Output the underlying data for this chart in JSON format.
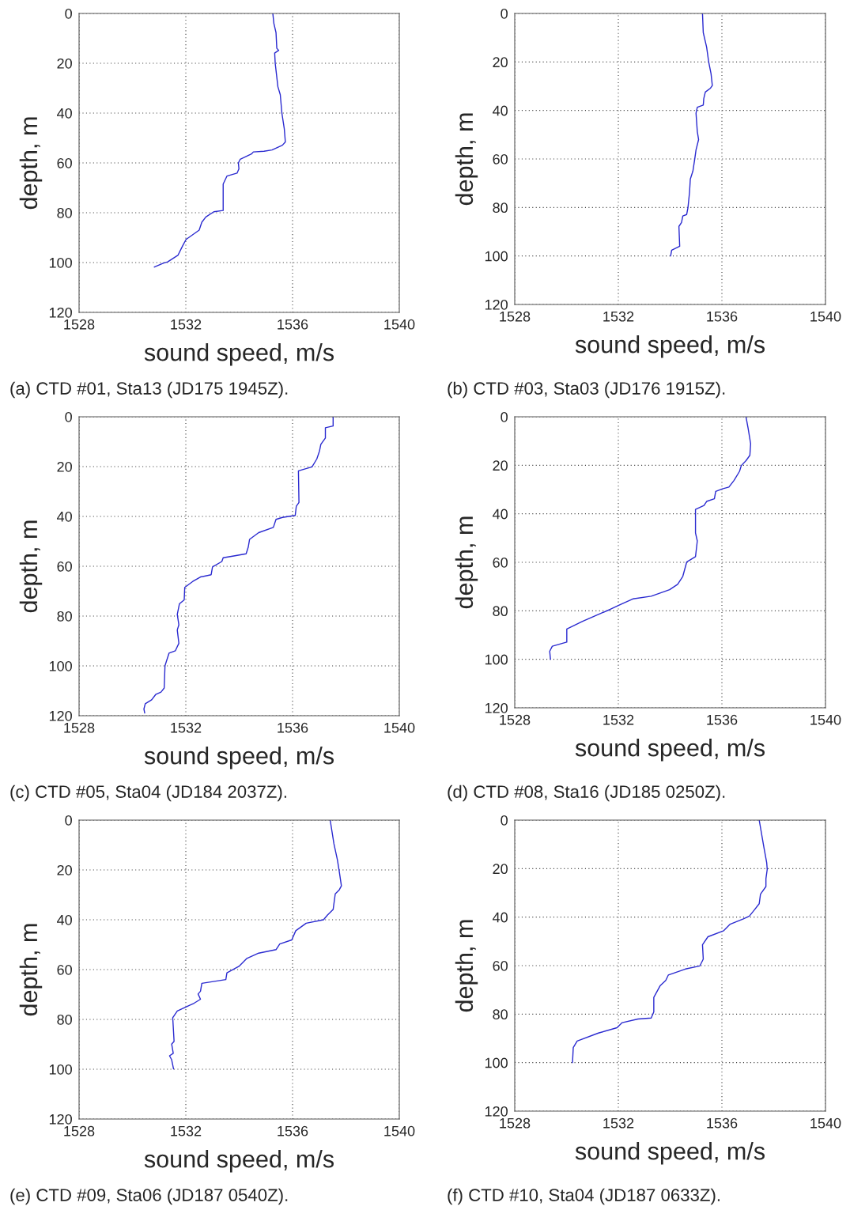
{
  "chart_data": [
    {
      "type": "line",
      "xlabel": "sound speed, m/s",
      "ylabel": "depth, m",
      "xlim": [
        1528,
        1540
      ],
      "ylim": [
        120,
        0
      ],
      "xticks": [
        1528,
        1532,
        1536,
        1540
      ],
      "yticks": [
        0,
        20,
        40,
        60,
        80,
        100,
        120
      ],
      "grid": true,
      "annotations": [
        "(a) CTD #01, Sta13 (JD175 1945Z)."
      ],
      "series": [
        {
          "color": "#2a2ad0",
          "x": [
            1535.26,
            1535.3,
            1535.38,
            1535.41,
            1535.48,
            1535.33,
            1535.35,
            1535.45,
            1535.54,
            1535.6,
            1535.69,
            1535.73,
            1535.62,
            1535.23,
            1534.93,
            1534.53,
            1534.46,
            1534.04,
            1533.97,
            1533.99,
            1533.92,
            1533.54,
            1533.4,
            1533.4,
            1533.05,
            1532.75,
            1532.6,
            1532.5,
            1532.01,
            1531.88,
            1531.71,
            1531.32,
            1531.17,
            1530.82
          ],
          "values": [
            0,
            4,
            7.7,
            14,
            14.8,
            15.9,
            20,
            29.4,
            32.6,
            40,
            46.3,
            51.6,
            52.9,
            54.8,
            55.3,
            55.6,
            56.4,
            58.5,
            60,
            62.4,
            64.1,
            65.3,
            68.5,
            79.1,
            79.6,
            81.7,
            83.8,
            87,
            90.7,
            93.3,
            97,
            99.7,
            100.2,
            101.8
          ]
        }
      ]
    },
    {
      "type": "line",
      "xlabel": "sound speed, m/s",
      "ylabel": "depth, m",
      "xlim": [
        1528,
        1540
      ],
      "ylim": [
        120,
        0
      ],
      "xticks": [
        1528,
        1532,
        1536,
        1540
      ],
      "yticks": [
        0,
        20,
        40,
        60,
        80,
        100,
        120
      ],
      "grid": true,
      "annotations": [
        "(b) CTD #03, Sta03 (JD176 1915Z)."
      ],
      "series": [
        {
          "color": "#2a2ad0",
          "x": [
            1535.25,
            1535.28,
            1535.41,
            1535.49,
            1535.58,
            1535.63,
            1535.56,
            1535.36,
            1535.3,
            1535.28,
            1535.05,
            1535.0,
            1535.05,
            1535.1,
            1535.0,
            1534.95,
            1534.88,
            1534.78,
            1534.75,
            1534.69,
            1534.64,
            1534.49,
            1534.44,
            1534.34,
            1534.37,
            1534.06,
            1534.02
          ],
          "values": [
            0,
            7.9,
            13.9,
            20,
            24.8,
            29.7,
            30.8,
            32.4,
            35.1,
            37.8,
            38.7,
            41.1,
            48.7,
            52,
            56.3,
            60.1,
            65,
            68.3,
            73.7,
            80,
            82.9,
            83.5,
            86.2,
            87.8,
            96,
            97.6,
            100
          ]
        }
      ]
    },
    {
      "type": "line",
      "xlabel": "sound speed, m/s",
      "ylabel": "depth, m",
      "xlim": [
        1528,
        1540
      ],
      "ylim": [
        120,
        0
      ],
      "xticks": [
        1528,
        1532,
        1536,
        1540
      ],
      "yticks": [
        0,
        20,
        40,
        60,
        80,
        100,
        120
      ],
      "grid": true,
      "annotations": [
        "(c) CTD #05, Sta04 (JD184 2037Z)."
      ],
      "series": [
        {
          "color": "#2a2ad0",
          "x": [
            1537.52,
            1537.52,
            1537.23,
            1537.23,
            1537.06,
            1537.01,
            1536.91,
            1536.73,
            1536.22,
            1536.24,
            1536.14,
            1536.1,
            1535.62,
            1535.38,
            1535.28,
            1534.73,
            1534.39,
            1534.34,
            1534.26,
            1533.84,
            1533.4,
            1533.35,
            1533.0,
            1532.95,
            1532.55,
            1532.26,
            1531.96,
            1531.94,
            1531.76,
            1531.68,
            1531.74,
            1531.68,
            1531.74,
            1531.61,
            1531.37,
            1531.22,
            1531.19,
            1531.07,
            1530.87,
            1530.72,
            1530.48,
            1530.43,
            1530.46
          ],
          "values": [
            0,
            3.7,
            4.4,
            8.5,
            11.1,
            13.7,
            16.9,
            20.1,
            21.7,
            34.4,
            35.9,
            39.6,
            40.4,
            41.2,
            44.4,
            46.5,
            49.2,
            52.3,
            55,
            55.8,
            56.6,
            58.1,
            60.3,
            63.4,
            64.3,
            66.1,
            68.5,
            73.5,
            75.1,
            79.3,
            83.5,
            85.6,
            90.9,
            93.9,
            94.9,
            99.9,
            108.9,
            110.5,
            111.5,
            113.6,
            115.2,
            117.3,
            118.9
          ]
        }
      ]
    },
    {
      "type": "line",
      "xlabel": "sound speed, m/s",
      "ylabel": "depth, m",
      "xlim": [
        1528,
        1540
      ],
      "ylim": [
        120,
        0
      ],
      "xticks": [
        1528,
        1532,
        1536,
        1540
      ],
      "yticks": [
        0,
        20,
        40,
        60,
        80,
        100,
        120
      ],
      "grid": true,
      "annotations": [
        "(d) CTD #08, Sta16 (JD185 0250Z)."
      ],
      "series": [
        {
          "color": "#2a2ad0",
          "x": [
            1536.93,
            1537.01,
            1537.11,
            1537.08,
            1536.93,
            1536.75,
            1536.68,
            1536.47,
            1536.27,
            1536.02,
            1535.76,
            1535.71,
            1535.41,
            1535.31,
            1534.98,
            1534.98,
            1535.05,
            1534.98,
            1534.64,
            1534.49,
            1534.29,
            1533.98,
            1533.27,
            1532.56,
            1532.0,
            1531.69,
            1530.62,
            1530.01,
            1530.01,
            1529.45,
            1529.35,
            1529.38
          ],
          "values": [
            0,
            4.6,
            11.1,
            15.9,
            18.1,
            20.1,
            22.5,
            26.2,
            29,
            29.7,
            30.8,
            33.8,
            34.9,
            36.6,
            38.2,
            47.9,
            51.2,
            57.7,
            59.9,
            65.8,
            69.1,
            71.3,
            74,
            75.1,
            77.8,
            79.4,
            84.3,
            87.5,
            92.9,
            94.6,
            96.7,
            100
          ]
        }
      ]
    },
    {
      "type": "line",
      "xlabel": "sound speed, m/s",
      "ylabel": "depth, m",
      "xlim": [
        1528,
        1540
      ],
      "ylim": [
        120,
        0
      ],
      "xticks": [
        1528,
        1532,
        1536,
        1540
      ],
      "yticks": [
        0,
        20,
        40,
        60,
        80,
        100,
        120
      ],
      "grid": true,
      "annotations": [
        "(e) CTD #09, Sta06 (JD187 0540Z)."
      ],
      "series": [
        {
          "color": "#2a2ad0",
          "x": [
            1537.41,
            1537.55,
            1537.68,
            1537.75,
            1537.83,
            1537.75,
            1537.6,
            1537.52,
            1537.31,
            1537.16,
            1536.51,
            1536.12,
            1535.97,
            1535.52,
            1535.38,
            1534.73,
            1534.29,
            1533.99,
            1533.54,
            1533.5,
            1532.6,
            1532.55,
            1532.46,
            1532.55,
            1532.31,
            1531.68,
            1531.51,
            1531.56,
            1531.47,
            1531.53,
            1531.39,
            1531.47,
            1531.54
          ],
          "values": [
            0,
            9.5,
            15.9,
            20.6,
            26.4,
            28,
            29.6,
            35.9,
            38.1,
            40,
            41.4,
            44.4,
            48.1,
            49.7,
            52,
            53.4,
            55.5,
            58.7,
            61.3,
            64,
            65.5,
            68.7,
            69.8,
            71.9,
            73.5,
            76.6,
            79.3,
            88.8,
            89.9,
            93.6,
            94.6,
            96.2,
            99.9
          ]
        }
      ]
    },
    {
      "type": "line",
      "xlabel": "sound speed, m/s",
      "ylabel": "depth, m",
      "xlim": [
        1528,
        1540
      ],
      "ylim": [
        120,
        0
      ],
      "xticks": [
        1528,
        1532,
        1536,
        1540
      ],
      "yticks": [
        0,
        20,
        40,
        60,
        80,
        100,
        120
      ],
      "grid": true,
      "annotations": [
        "(f) CTD #10, Sta04 (JD187 0633Z)."
      ],
      "series": [
        {
          "color": "#2a2ad0",
          "x": [
            1537.44,
            1537.62,
            1537.73,
            1537.75,
            1537.7,
            1537.7,
            1537.49,
            1537.44,
            1537.24,
            1537.06,
            1536.83,
            1536.32,
            1536.07,
            1535.46,
            1535.25,
            1535.28,
            1535.15,
            1534.59,
            1533.93,
            1533.83,
            1533.62,
            1533.37,
            1533.37,
            1533.27,
            1532.76,
            1532.15,
            1531.95,
            1531.23,
            1530.41,
            1530.26,
            1530.23
          ],
          "values": [
            0,
            11.1,
            17.6,
            20.3,
            24.2,
            27.4,
            30.5,
            34.5,
            37.2,
            39.6,
            40.7,
            42.9,
            45.6,
            48.1,
            51.4,
            57.3,
            60.1,
            61.4,
            63.9,
            66.1,
            68.2,
            73.1,
            79.1,
            81.6,
            82,
            83.5,
            85.6,
            87.8,
            91.1,
            93.8,
            100
          ]
        }
      ]
    }
  ]
}
